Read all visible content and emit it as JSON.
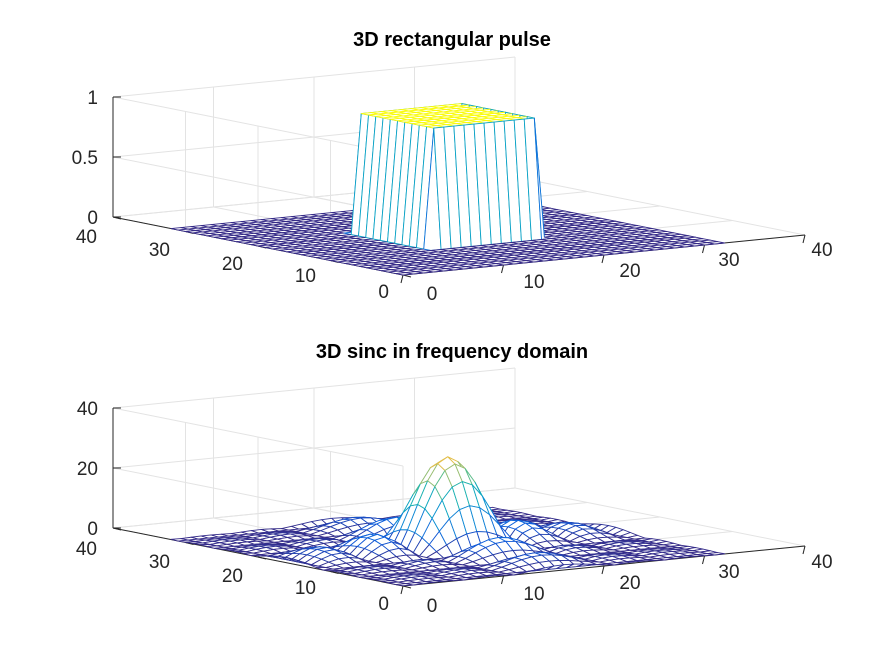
{
  "chart_data": [
    {
      "type": "surface",
      "title": "3D rectangular pulse",
      "xlabel": "",
      "ylabel": "",
      "zlabel": "",
      "xlim": [
        0,
        40
      ],
      "ylim": [
        0,
        40
      ],
      "zlim": [
        0,
        1
      ],
      "xticks": [
        "0",
        "10",
        "20",
        "30",
        "40"
      ],
      "yticks": [
        "0",
        "10",
        "20",
        "30",
        "40"
      ],
      "zticks": [
        "0",
        "0.5",
        "1"
      ],
      "grid": true,
      "colormap": "parula",
      "surface": {
        "grid_size": 32,
        "function": "rect",
        "pulse_region": {
          "x": [
            11,
            21
          ],
          "y": [
            11,
            21
          ]
        },
        "height": 1
      }
    },
    {
      "type": "surface",
      "title": "3D sinc in frequency domain",
      "xlabel": "",
      "ylabel": "",
      "zlabel": "",
      "xlim": [
        0,
        40
      ],
      "ylim": [
        0,
        40
      ],
      "zlim": [
        0,
        40
      ],
      "xticks": [
        "0",
        "10",
        "20",
        "30",
        "40"
      ],
      "yticks": [
        "0",
        "10",
        "20",
        "30",
        "40"
      ],
      "zticks": [
        "0",
        "20",
        "40"
      ],
      "grid": true,
      "colormap": "parula",
      "surface": {
        "grid_size": 32,
        "function": "abs_sinc_product",
        "center": [
          16,
          16
        ],
        "peak": 30,
        "main_lobe_halfwidth": 5
      }
    }
  ],
  "colors": {
    "background": "#ffffff",
    "grid": "#e3e3e3",
    "axis": "#262626",
    "parula_low": "#352a87",
    "parula_high": "#f9fb0e"
  }
}
